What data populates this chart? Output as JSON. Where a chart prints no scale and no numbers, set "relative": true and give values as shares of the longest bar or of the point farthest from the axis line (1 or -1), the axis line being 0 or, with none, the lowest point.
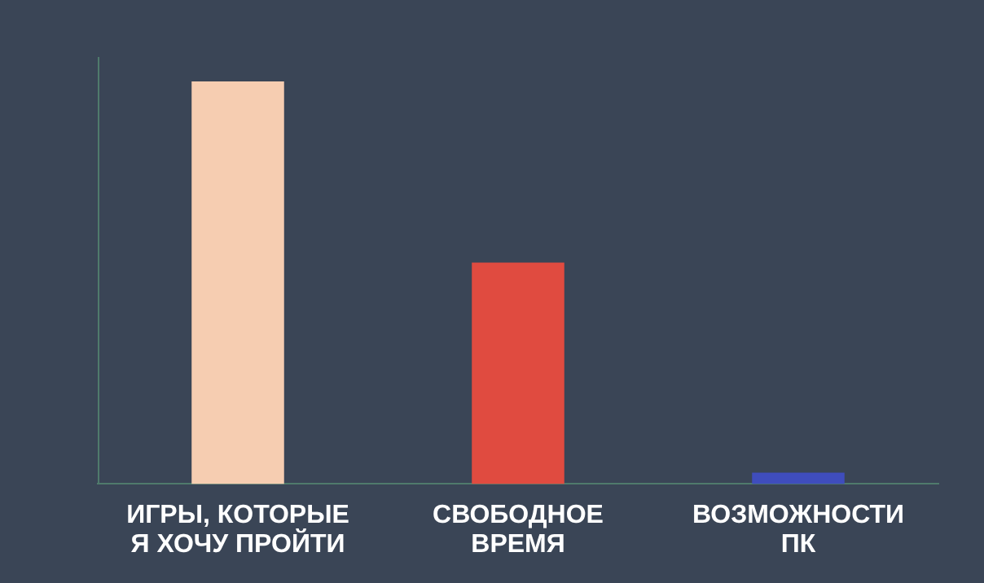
{
  "chart_data": {
    "type": "bar",
    "relative": true,
    "categories": [
      "ИГРЫ, КОТОРЫЕ Я ХОЧУ ПРОЙТИ",
      "СВОБОДНОЕ ВРЕМЯ",
      "ВОЗМОЖНОСТИ ПК"
    ],
    "values": [
      1,
      0.55,
      0.028
    ],
    "colors": [
      "#f6cdb1",
      "#e04b40",
      "#3f4dbd"
    ],
    "grid": false,
    "legend": false
  }
}
